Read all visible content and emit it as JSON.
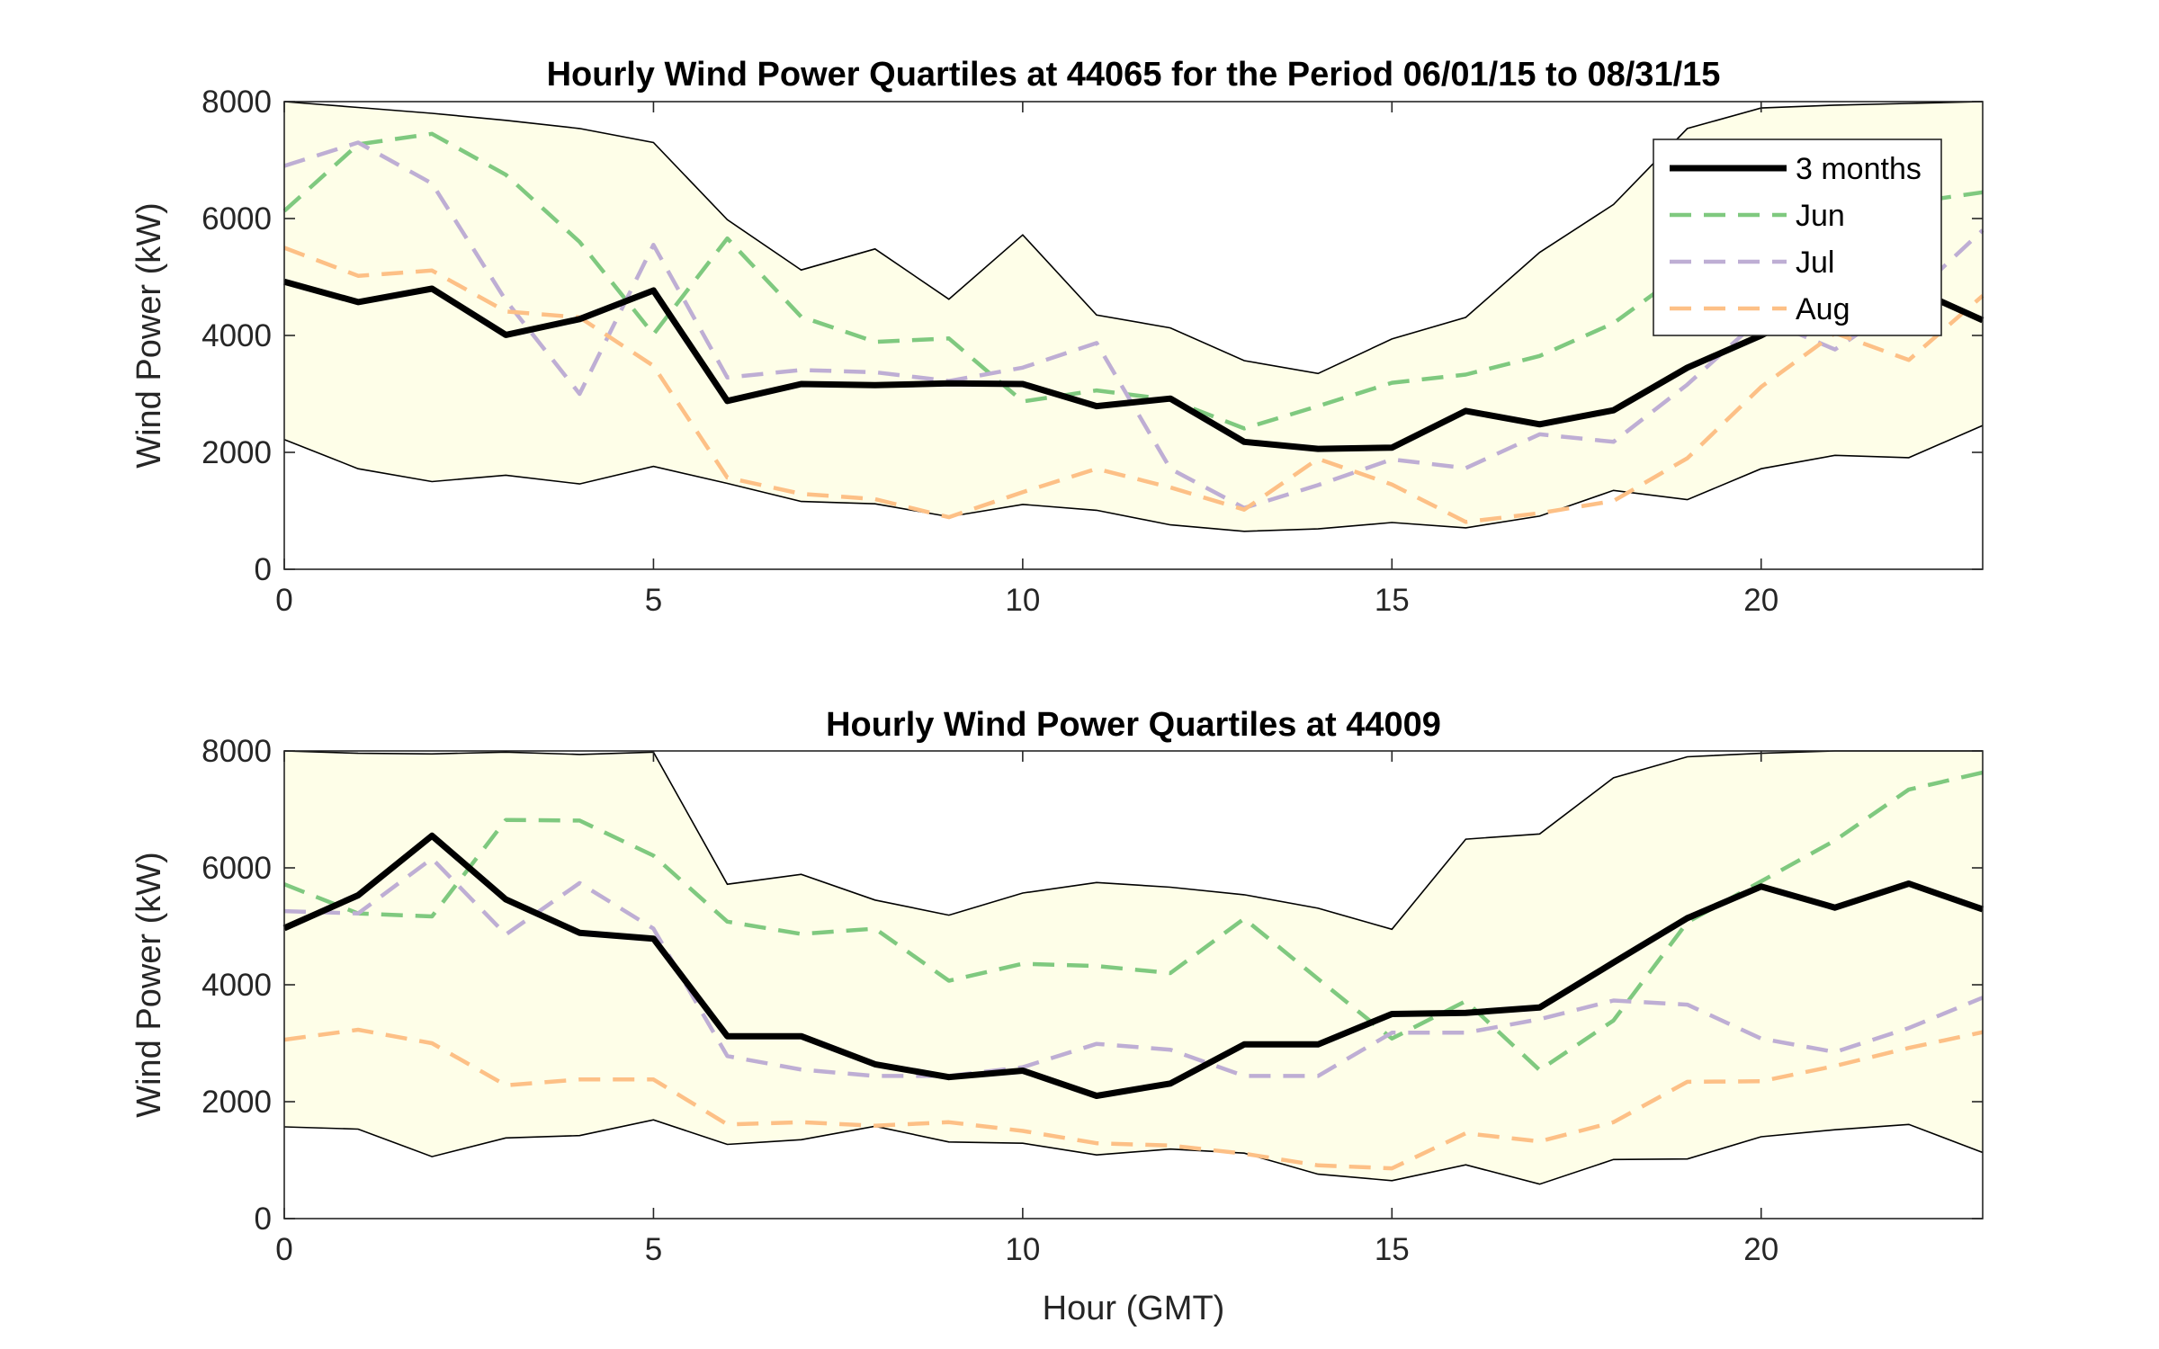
{
  "chart_data": [
    {
      "type": "line",
      "title": "Hourly Wind Power Quartiles at 44065 for the Period 06/01/15 to 08/31/15",
      "xlabel": "",
      "ylabel": "Wind Power (kW)",
      "xlim": [
        0,
        23
      ],
      "ylim": [
        0,
        8000
      ],
      "xticks": [
        0,
        5,
        10,
        15,
        20
      ],
      "yticks": [
        0,
        2000,
        4000,
        6000,
        8000
      ],
      "grid": false,
      "legend_position": "top-right",
      "x": [
        0,
        1,
        2,
        3,
        4,
        5,
        6,
        7,
        8,
        9,
        10,
        11,
        12,
        13,
        14,
        15,
        16,
        17,
        18,
        19,
        20,
        21,
        22,
        23
      ],
      "band": {
        "upper": [
          8000,
          7900,
          7800,
          7680,
          7540,
          7300,
          5980,
          5120,
          5480,
          4620,
          5720,
          4350,
          4130,
          3570,
          3350,
          3940,
          4310,
          5420,
          6240,
          7540,
          7890,
          7940,
          7970,
          8000
        ],
        "lower": [
          2220,
          1720,
          1500,
          1610,
          1460,
          1760,
          1470,
          1160,
          1120,
          900,
          1110,
          1010,
          760,
          650,
          690,
          800,
          710,
          910,
          1350,
          1190,
          1720,
          1950,
          1910,
          2460
        ],
        "fill": "#fefee8",
        "edge": "#000000"
      },
      "series": [
        {
          "name": "3 months",
          "style": "solid",
          "color": "#000000",
          "values": [
            4920,
            4570,
            4800,
            4010,
            4280,
            4770,
            2880,
            3170,
            3150,
            3180,
            3170,
            2790,
            2920,
            2180,
            2060,
            2080,
            2710,
            2480,
            2720,
            3450,
            4000,
            4650,
            4830,
            4260
          ]
        },
        {
          "name": "Jun",
          "style": "dashed",
          "color": "#7fc97f",
          "values": [
            6130,
            7270,
            7450,
            6750,
            5600,
            4020,
            5660,
            4320,
            3890,
            3950,
            2870,
            3060,
            2900,
            2410,
            2790,
            3190,
            3330,
            3650,
            4210,
            5130,
            5380,
            6030,
            6270,
            6450
          ]
        },
        {
          "name": "Jul",
          "style": "dashed",
          "color": "#beaed4",
          "values": [
            6900,
            7300,
            6600,
            4600,
            3000,
            5550,
            3280,
            3410,
            3370,
            3220,
            3450,
            3870,
            1720,
            1050,
            1440,
            1880,
            1730,
            2310,
            2180,
            3160,
            4300,
            3760,
            4620,
            5800
          ]
        },
        {
          "name": "Aug",
          "style": "dashed",
          "color": "#fdc086",
          "values": [
            5500,
            5020,
            5110,
            4410,
            4310,
            3480,
            1570,
            1290,
            1200,
            890,
            1320,
            1720,
            1400,
            1020,
            1890,
            1450,
            810,
            960,
            1170,
            1900,
            3120,
            4040,
            3580,
            4680
          ]
        }
      ]
    },
    {
      "type": "line",
      "title": "Hourly Wind Power Quartiles at 44009",
      "xlabel": "Hour (GMT)",
      "ylabel": "Wind Power (kW)",
      "xlim": [
        0,
        23
      ],
      "ylim": [
        0,
        8000
      ],
      "xticks": [
        0,
        5,
        10,
        15,
        20
      ],
      "yticks": [
        0,
        2000,
        4000,
        6000,
        8000
      ],
      "grid": false,
      "x": [
        0,
        1,
        2,
        3,
        4,
        5,
        6,
        7,
        8,
        9,
        10,
        11,
        12,
        13,
        14,
        15,
        16,
        17,
        18,
        19,
        20,
        21,
        22,
        23
      ],
      "band": {
        "upper": [
          8000,
          7960,
          7950,
          7980,
          7940,
          7980,
          5720,
          5890,
          5450,
          5190,
          5570,
          5750,
          5670,
          5540,
          5310,
          4950,
          6490,
          6580,
          7540,
          7900,
          7960,
          8000,
          8000,
          8000
        ],
        "lower": [
          1570,
          1530,
          1060,
          1380,
          1420,
          1690,
          1270,
          1350,
          1580,
          1310,
          1290,
          1090,
          1190,
          1120,
          760,
          650,
          920,
          590,
          1010,
          1020,
          1400,
          1520,
          1610,
          1130
        ],
        "fill": "#fefee8",
        "edge": "#000000"
      },
      "series": [
        {
          "name": "3 months",
          "style": "solid",
          "color": "#000000",
          "values": [
            4970,
            5530,
            6550,
            5460,
            4890,
            4790,
            3120,
            3120,
            2640,
            2420,
            2530,
            2100,
            2310,
            2980,
            2980,
            3500,
            3520,
            3610,
            4380,
            5140,
            5680,
            5320,
            5730,
            5290
          ]
        },
        {
          "name": "Jun",
          "style": "dashed",
          "color": "#7fc97f",
          "values": [
            5720,
            5220,
            5170,
            6820,
            6810,
            6210,
            5080,
            4870,
            4960,
            4070,
            4360,
            4320,
            4200,
            5130,
            4100,
            3080,
            3720,
            2540,
            3390,
            5070,
            5770,
            6470,
            7340,
            7630
          ]
        },
        {
          "name": "Jul",
          "style": "dashed",
          "color": "#beaed4",
          "values": [
            5260,
            5220,
            6160,
            4860,
            5740,
            4960,
            2780,
            2550,
            2440,
            2440,
            2590,
            2990,
            2890,
            2440,
            2440,
            3180,
            3180,
            3410,
            3730,
            3660,
            3080,
            2850,
            3260,
            3780
          ]
        },
        {
          "name": "Aug",
          "style": "dashed",
          "color": "#fdc086",
          "values": [
            3060,
            3230,
            3000,
            2280,
            2380,
            2380,
            1610,
            1650,
            1590,
            1650,
            1500,
            1290,
            1250,
            1110,
            910,
            860,
            1460,
            1320,
            1650,
            2340,
            2350,
            2610,
            2920,
            3190
          ]
        }
      ]
    }
  ]
}
